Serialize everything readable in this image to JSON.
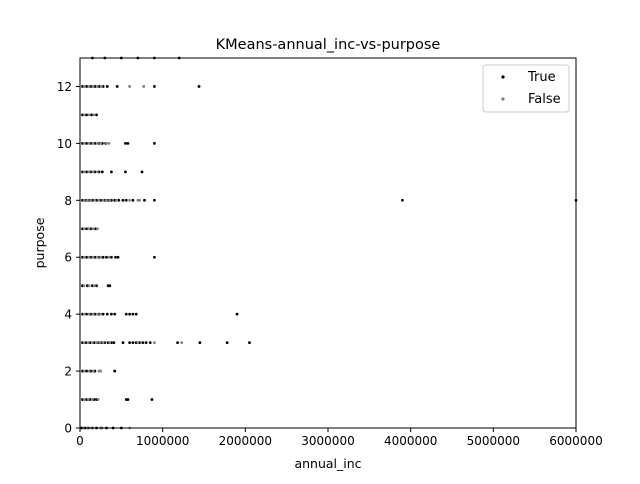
{
  "chart_data": {
    "type": "scatter",
    "title": "KMeans-annual_inc-vs-purpose",
    "xlabel": "annual_inc",
    "ylabel": "purpose",
    "xlim": [
      0,
      6000000
    ],
    "ylim": [
      0,
      13
    ],
    "x_ticks": [
      0,
      1000000,
      2000000,
      3000000,
      4000000,
      5000000,
      6000000
    ],
    "x_tick_labels": [
      "0",
      "1000000",
      "2000000",
      "3000000",
      "4000000",
      "5000000",
      "6000000"
    ],
    "y_ticks": [
      0,
      2,
      4,
      6,
      8,
      10,
      12
    ],
    "y_tick_labels": [
      "0",
      "2",
      "4",
      "6",
      "8",
      "10",
      "12"
    ],
    "grid": false,
    "legend_position": "top-right",
    "series": [
      {
        "name": "True",
        "color": "#000000",
        "points": [
          [
            20000,
            0
          ],
          [
            60000,
            0
          ],
          [
            100000,
            0
          ],
          [
            150000,
            0
          ],
          [
            200000,
            0
          ],
          [
            260000,
            0
          ],
          [
            320000,
            0
          ],
          [
            400000,
            0
          ],
          [
            500000,
            0
          ],
          [
            30000,
            1
          ],
          [
            80000,
            1
          ],
          [
            120000,
            1
          ],
          [
            170000,
            1
          ],
          [
            200000,
            1
          ],
          [
            560000,
            1
          ],
          [
            580000,
            1
          ],
          [
            870000,
            1
          ],
          [
            30000,
            2
          ],
          [
            80000,
            2
          ],
          [
            130000,
            2
          ],
          [
            180000,
            2
          ],
          [
            420000,
            2
          ],
          [
            30000,
            3
          ],
          [
            70000,
            3
          ],
          [
            120000,
            3
          ],
          [
            170000,
            3
          ],
          [
            220000,
            3
          ],
          [
            260000,
            3
          ],
          [
            300000,
            3
          ],
          [
            340000,
            3
          ],
          [
            380000,
            3
          ],
          [
            410000,
            3
          ],
          [
            520000,
            3
          ],
          [
            600000,
            3
          ],
          [
            640000,
            3
          ],
          [
            680000,
            3
          ],
          [
            720000,
            3
          ],
          [
            760000,
            3
          ],
          [
            800000,
            3
          ],
          [
            850000,
            3
          ],
          [
            1180000,
            3
          ],
          [
            1450000,
            3
          ],
          [
            1780000,
            3
          ],
          [
            2050000,
            3
          ],
          [
            30000,
            4
          ],
          [
            80000,
            4
          ],
          [
            130000,
            4
          ],
          [
            180000,
            4
          ],
          [
            230000,
            4
          ],
          [
            280000,
            4
          ],
          [
            330000,
            4
          ],
          [
            380000,
            4
          ],
          [
            420000,
            4
          ],
          [
            560000,
            4
          ],
          [
            600000,
            4
          ],
          [
            640000,
            4
          ],
          [
            680000,
            4
          ],
          [
            1900000,
            4
          ],
          [
            30000,
            5
          ],
          [
            90000,
            5
          ],
          [
            150000,
            5
          ],
          [
            200000,
            5
          ],
          [
            340000,
            5
          ],
          [
            360000,
            5
          ],
          [
            30000,
            6
          ],
          [
            80000,
            6
          ],
          [
            130000,
            6
          ],
          [
            180000,
            6
          ],
          [
            230000,
            6
          ],
          [
            280000,
            6
          ],
          [
            320000,
            6
          ],
          [
            380000,
            6
          ],
          [
            430000,
            6
          ],
          [
            460000,
            6
          ],
          [
            900000,
            6
          ],
          [
            30000,
            7
          ],
          [
            80000,
            7
          ],
          [
            130000,
            7
          ],
          [
            190000,
            7
          ],
          [
            30000,
            8
          ],
          [
            70000,
            8
          ],
          [
            110000,
            8
          ],
          [
            150000,
            8
          ],
          [
            200000,
            8
          ],
          [
            250000,
            8
          ],
          [
            300000,
            8
          ],
          [
            340000,
            8
          ],
          [
            380000,
            8
          ],
          [
            420000,
            8
          ],
          [
            470000,
            8
          ],
          [
            520000,
            8
          ],
          [
            560000,
            8
          ],
          [
            640000,
            8
          ],
          [
            780000,
            8
          ],
          [
            900000,
            8
          ],
          [
            3900000,
            8
          ],
          [
            6000000,
            8
          ],
          [
            30000,
            9
          ],
          [
            80000,
            9
          ],
          [
            130000,
            9
          ],
          [
            180000,
            9
          ],
          [
            230000,
            9
          ],
          [
            270000,
            9
          ],
          [
            380000,
            9
          ],
          [
            550000,
            9
          ],
          [
            750000,
            9
          ],
          [
            30000,
            10
          ],
          [
            80000,
            10
          ],
          [
            130000,
            10
          ],
          [
            180000,
            10
          ],
          [
            230000,
            10
          ],
          [
            270000,
            10
          ],
          [
            310000,
            10
          ],
          [
            550000,
            10
          ],
          [
            580000,
            10
          ],
          [
            900000,
            10
          ],
          [
            30000,
            11
          ],
          [
            80000,
            11
          ],
          [
            140000,
            11
          ],
          [
            200000,
            11
          ],
          [
            30000,
            12
          ],
          [
            80000,
            12
          ],
          [
            130000,
            12
          ],
          [
            180000,
            12
          ],
          [
            230000,
            12
          ],
          [
            280000,
            12
          ],
          [
            330000,
            12
          ],
          [
            450000,
            12
          ],
          [
            900000,
            12
          ],
          [
            1440000,
            12
          ],
          [
            150000,
            13
          ],
          [
            300000,
            13
          ],
          [
            500000,
            13
          ],
          [
            700000,
            13
          ],
          [
            900000,
            13
          ],
          [
            1200000,
            13
          ]
        ]
      },
      {
        "name": "False",
        "color": "#808080",
        "points": [
          [
            40000,
            0
          ],
          [
            90000,
            0
          ],
          [
            140000,
            0
          ],
          [
            250000,
            0
          ],
          [
            600000,
            0
          ],
          [
            50000,
            1
          ],
          [
            100000,
            1
          ],
          [
            150000,
            1
          ],
          [
            220000,
            1
          ],
          [
            50000,
            2
          ],
          [
            110000,
            2
          ],
          [
            160000,
            2
          ],
          [
            230000,
            2
          ],
          [
            250000,
            2
          ],
          [
            50000,
            3
          ],
          [
            100000,
            3
          ],
          [
            150000,
            3
          ],
          [
            200000,
            3
          ],
          [
            240000,
            3
          ],
          [
            280000,
            3
          ],
          [
            360000,
            3
          ],
          [
            700000,
            3
          ],
          [
            900000,
            3
          ],
          [
            1230000,
            3
          ],
          [
            50000,
            4
          ],
          [
            110000,
            4
          ],
          [
            160000,
            4
          ],
          [
            210000,
            4
          ],
          [
            250000,
            4
          ],
          [
            50000,
            5
          ],
          [
            110000,
            5
          ],
          [
            170000,
            5
          ],
          [
            50000,
            6
          ],
          [
            110000,
            6
          ],
          [
            160000,
            6
          ],
          [
            210000,
            6
          ],
          [
            250000,
            6
          ],
          [
            350000,
            6
          ],
          [
            50000,
            7
          ],
          [
            110000,
            7
          ],
          [
            160000,
            7
          ],
          [
            210000,
            7
          ],
          [
            50000,
            8
          ],
          [
            90000,
            8
          ],
          [
            130000,
            8
          ],
          [
            180000,
            8
          ],
          [
            230000,
            8
          ],
          [
            280000,
            8
          ],
          [
            320000,
            8
          ],
          [
            360000,
            8
          ],
          [
            440000,
            8
          ],
          [
            600000,
            8
          ],
          [
            700000,
            8
          ],
          [
            720000,
            8
          ],
          [
            50000,
            9
          ],
          [
            110000,
            9
          ],
          [
            160000,
            9
          ],
          [
            210000,
            9
          ],
          [
            50000,
            10
          ],
          [
            110000,
            10
          ],
          [
            160000,
            10
          ],
          [
            210000,
            10
          ],
          [
            250000,
            10
          ],
          [
            320000,
            10
          ],
          [
            350000,
            10
          ],
          [
            50000,
            11
          ],
          [
            110000,
            11
          ],
          [
            170000,
            11
          ],
          [
            50000,
            12
          ],
          [
            110000,
            12
          ],
          [
            160000,
            12
          ],
          [
            210000,
            12
          ],
          [
            260000,
            12
          ],
          [
            600000,
            12
          ],
          [
            770000,
            12
          ]
        ]
      }
    ]
  }
}
